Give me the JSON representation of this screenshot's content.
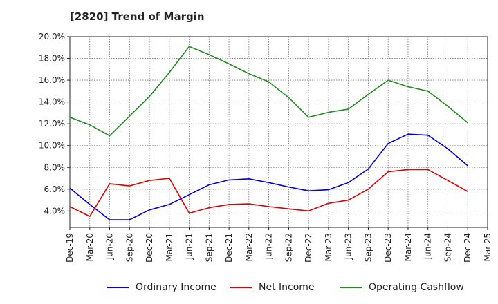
{
  "title": "[2820]  Trend of Margin",
  "chart_data": {
    "type": "line",
    "title": "[2820]  Trend of Margin",
    "x": [
      "Dec-19",
      "Mar-20",
      "Jun-20",
      "Sep-20",
      "Dec-20",
      "Mar-21",
      "Jun-21",
      "Sep-21",
      "Dec-21",
      "Mar-22",
      "Jun-22",
      "Sep-22",
      "Dec-22",
      "Mar-23",
      "Jun-23",
      "Sep-23",
      "Dec-23",
      "Mar-24",
      "Jun-24",
      "Sep-24",
      "Dec-24",
      "Mar-25"
    ],
    "xlabel": "",
    "ylabel": "",
    "ylim": [
      2.5,
      20.0
    ],
    "yticks": [
      4.0,
      6.0,
      8.0,
      10.0,
      12.0,
      14.0,
      16.0,
      18.0,
      20.0
    ],
    "ytick_labels": [
      "4.0%",
      "6.0%",
      "8.0%",
      "10.0%",
      "12.0%",
      "14.0%",
      "16.0%",
      "18.0%",
      "20.0%"
    ],
    "grid": true,
    "legend_position": "bottom",
    "series": [
      {
        "name": "Ordinary Income",
        "color": "#0000dd",
        "values": [
          6.1,
          4.6,
          3.2,
          3.2,
          4.1,
          4.6,
          5.5,
          6.4,
          6.85,
          6.95,
          6.6,
          6.2,
          5.85,
          5.95,
          6.6,
          7.85,
          10.2,
          11.05,
          10.95,
          9.7,
          8.15,
          null
        ]
      },
      {
        "name": "Net Income",
        "color": "#dd0000",
        "values": [
          4.4,
          3.5,
          6.5,
          6.3,
          6.8,
          7.0,
          3.8,
          4.3,
          4.6,
          4.65,
          4.4,
          4.2,
          4.0,
          4.7,
          5.0,
          6.0,
          7.6,
          7.8,
          7.8,
          6.8,
          5.8,
          null
        ]
      },
      {
        "name": "Operating Cashflow",
        "color": "#228b22",
        "values": [
          12.6,
          11.9,
          10.9,
          12.7,
          14.5,
          16.7,
          19.1,
          18.35,
          17.5,
          16.6,
          15.85,
          14.4,
          12.6,
          13.05,
          13.35,
          14.7,
          16.0,
          15.4,
          15.0,
          13.6,
          12.1,
          null
        ]
      }
    ]
  }
}
